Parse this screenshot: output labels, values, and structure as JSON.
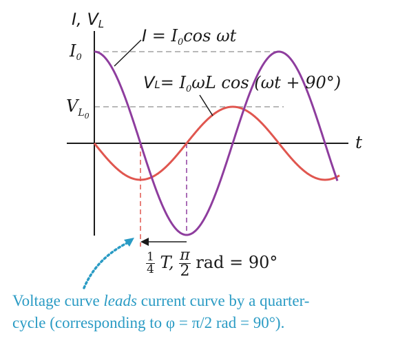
{
  "labels": {
    "y_axis_I": "I,",
    "y_axis_V": "V",
    "y_axis_V_sub": "L",
    "t_axis": "t",
    "I0_tick": "I",
    "I0_tick_sub": "0",
    "VL0_tick": "V",
    "VL0_tick_sub1": "L",
    "VL0_tick_sub2": "0",
    "current_eq_lhs": "I",
    "current_eq_mid": "= ",
    "current_eq_I": "I",
    "current_eq_sub": "0",
    "current_eq_rhs": "cos ωt",
    "voltage_eq_V": "V",
    "voltage_eq_V_sub": "L",
    "voltage_eq_mid": "= ",
    "voltage_eq_I": "I",
    "voltage_eq_I_sub": "0",
    "voltage_eq_rhs": "ωL cos (ωt + 90°)",
    "quarter_num": "1",
    "quarter_den": "4",
    "quarter_T": "T,",
    "pi_num": "π",
    "pi_den": "2",
    "rad_text": "rad = 90°"
  },
  "caption": {
    "line1_a": "Voltage curve ",
    "line1_b": "leads",
    "line1_c": " current curve by a quarter-",
    "line2": "cycle (corresponding to φ = π/2 rad = 90°)."
  },
  "colors": {
    "current": "#8e3d9e",
    "voltage": "#e0564f",
    "axis": "#1a1a1a",
    "dash": "#a0a0a0",
    "caption": "#2a9bc4"
  }
}
